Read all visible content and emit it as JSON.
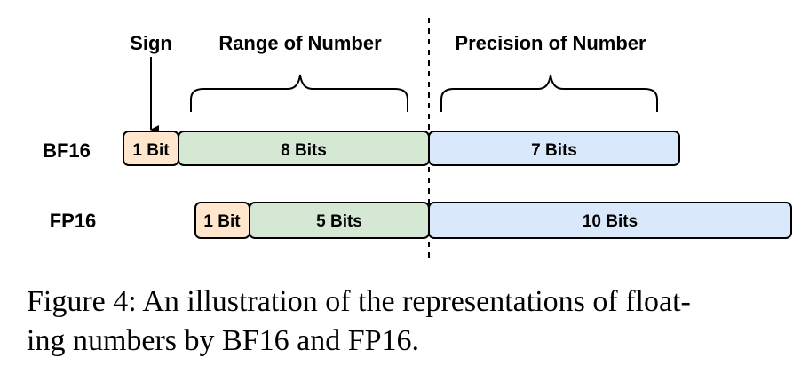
{
  "diagram": {
    "sign_label": "Sign",
    "range_label": "Range of Number",
    "precision_label": "Precision of Number",
    "rows": [
      {
        "label": "BF16",
        "segments": [
          {
            "text": "1 Bit",
            "color": "#ffe6cc"
          },
          {
            "text": "8 Bits",
            "color": "#d5e8d4"
          },
          {
            "text": "7 Bits",
            "color": "#dae8fc"
          }
        ]
      },
      {
        "label": "FP16",
        "segments": [
          {
            "text": "1 Bit",
            "color": "#ffe6cc"
          },
          {
            "text": "5 Bits",
            "color": "#d5e8d4"
          },
          {
            "text": "10 Bits",
            "color": "#dae8fc"
          }
        ]
      }
    ]
  },
  "caption": {
    "line1": "Figure 4: An illustration of the representations of float-",
    "line2": "ing numbers by BF16 and FP16."
  }
}
